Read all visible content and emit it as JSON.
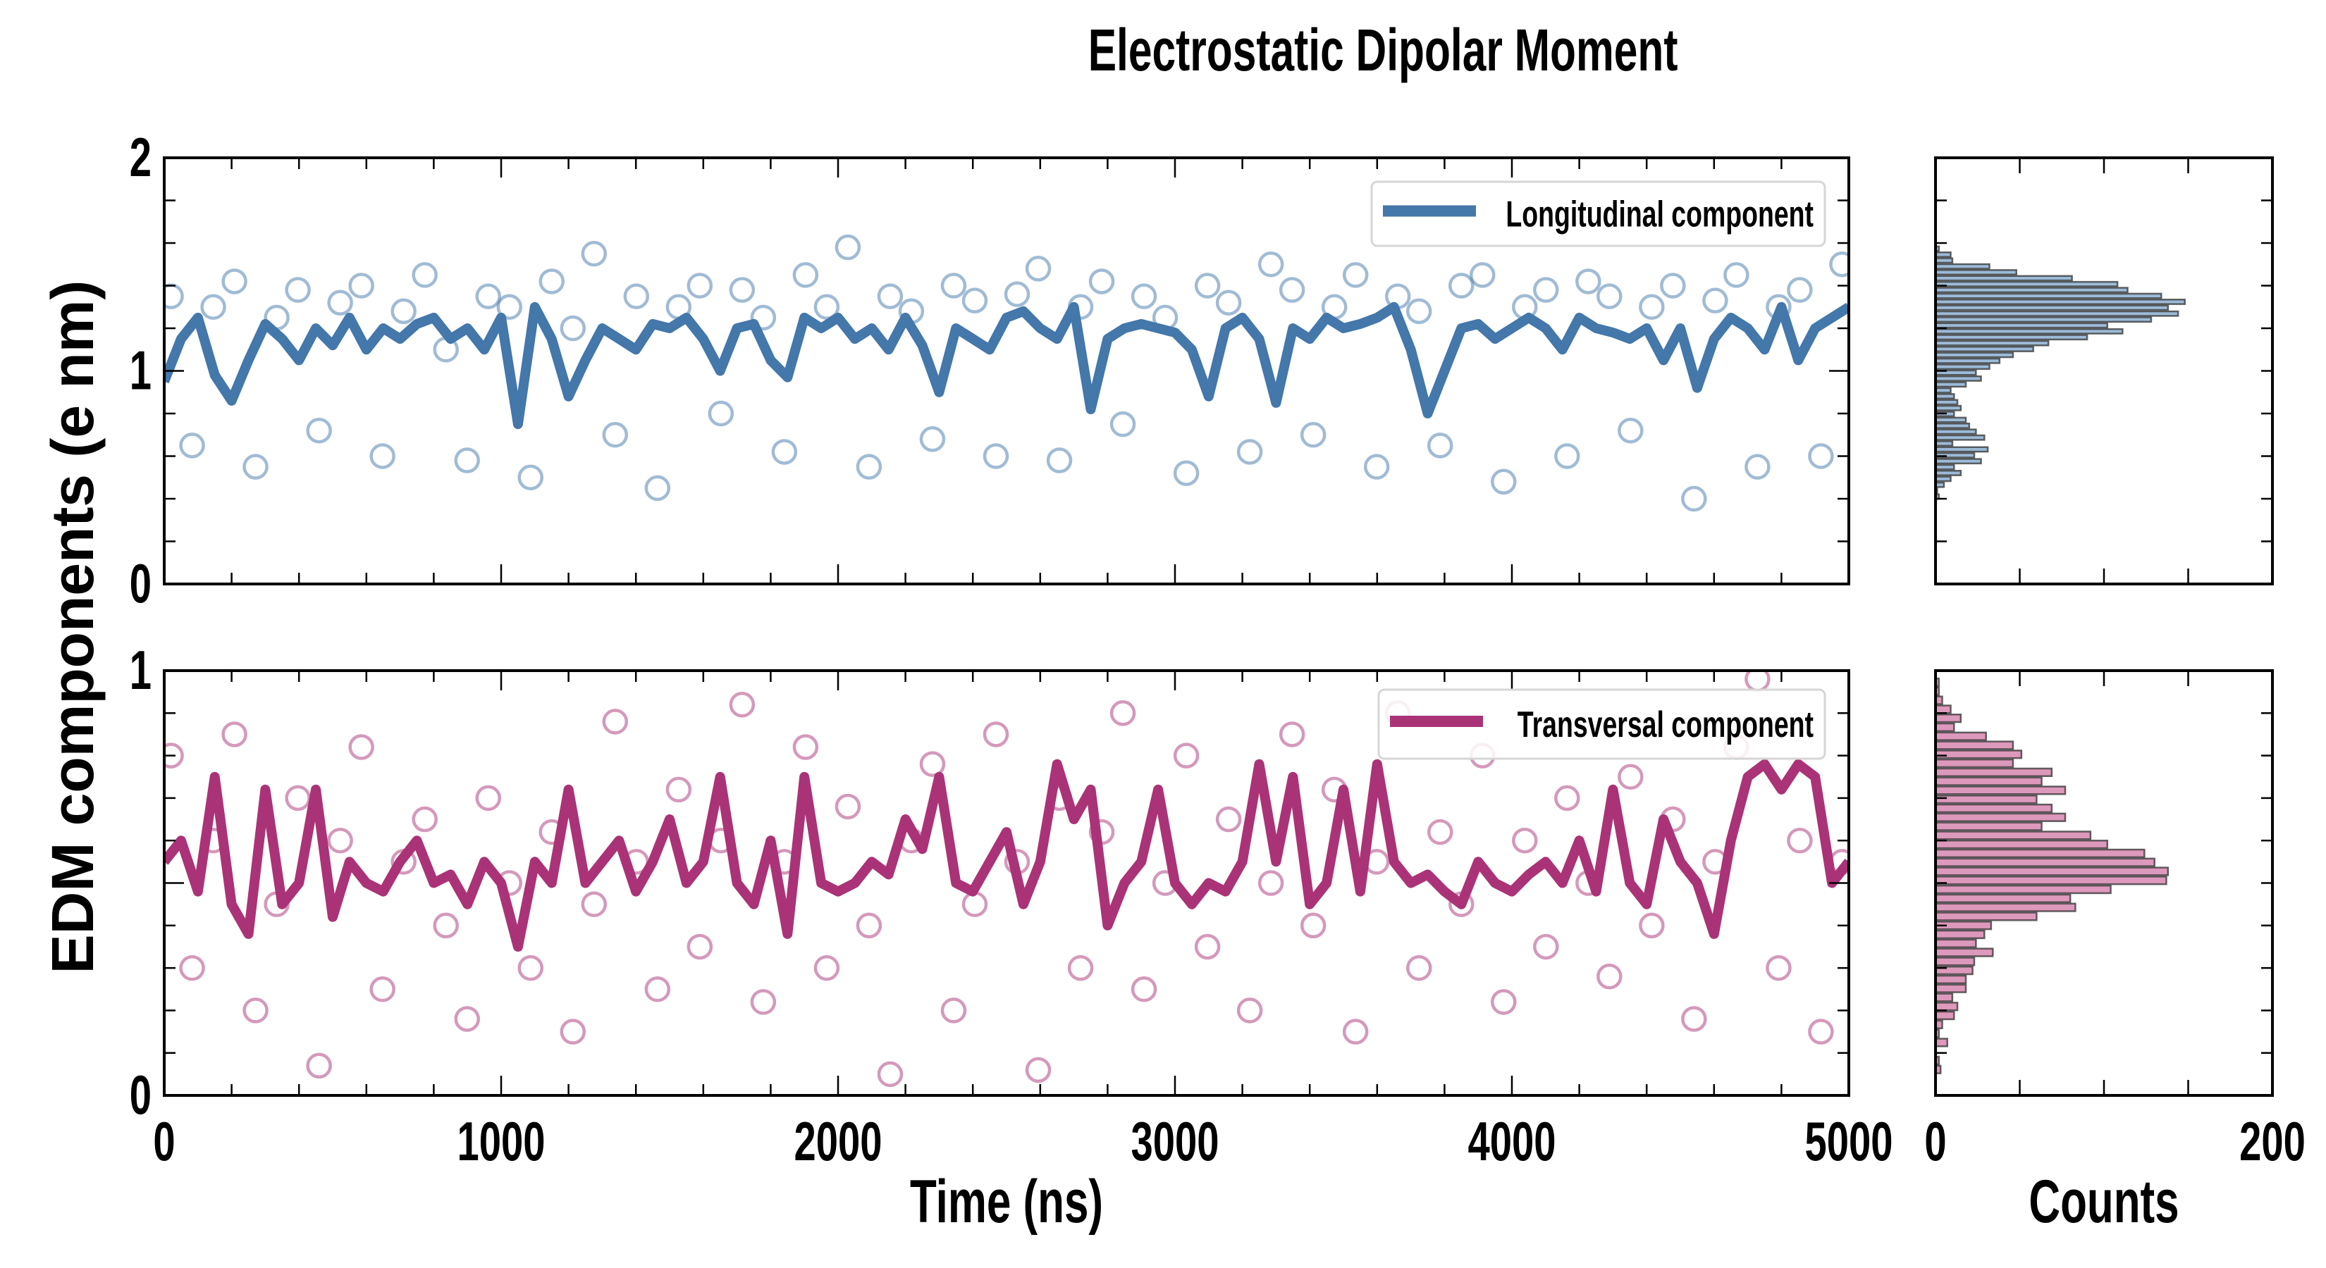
{
  "chart_data": [
    {
      "type": "line+scatter",
      "title": "Electrostatic Dipolar Moment",
      "ylabel": "EDM components (e nm)",
      "xlabel": "Time (ns)",
      "xlim": [
        0,
        5000
      ],
      "ylim": [
        0,
        2
      ],
      "xticks": [
        "0",
        "1000",
        "2000",
        "3000",
        "4000",
        "5000"
      ],
      "yticks": [
        "0",
        "1",
        "2"
      ],
      "legend": {
        "label": "Longitudinal component",
        "position": "top-right"
      },
      "color": "#4477aa",
      "line": {
        "x_start": 0,
        "x_end": 5000,
        "y": [
          0.95,
          1.15,
          1.25,
          0.98,
          0.86,
          1.05,
          1.22,
          1.15,
          1.05,
          1.2,
          1.12,
          1.25,
          1.1,
          1.2,
          1.15,
          1.22,
          1.25,
          1.15,
          1.2,
          1.1,
          1.25,
          0.75,
          1.3,
          1.15,
          0.88,
          1.05,
          1.2,
          1.15,
          1.1,
          1.22,
          1.2,
          1.25,
          1.15,
          1.0,
          1.2,
          1.22,
          1.05,
          0.97,
          1.25,
          1.2,
          1.25,
          1.15,
          1.2,
          1.1,
          1.25,
          1.12,
          0.9,
          1.2,
          1.15,
          1.1,
          1.25,
          1.28,
          1.2,
          1.15,
          1.3,
          0.82,
          1.15,
          1.2,
          1.22,
          1.2,
          1.18,
          1.1,
          0.88,
          1.2,
          1.25,
          1.15,
          0.85,
          1.2,
          1.15,
          1.25,
          1.2,
          1.22,
          1.25,
          1.3,
          1.1,
          0.8,
          1.0,
          1.2,
          1.22,
          1.15,
          1.2,
          1.25,
          1.2,
          1.1,
          1.25,
          1.2,
          1.18,
          1.15,
          1.2,
          1.05,
          1.2,
          0.92,
          1.15,
          1.25,
          1.2,
          1.1,
          1.3,
          1.05,
          1.2,
          1.25,
          1.3
        ]
      },
      "scatter": {
        "x_start": 20,
        "x_end": 4980,
        "y": [
          1.35,
          0.65,
          1.3,
          1.42,
          0.55,
          1.25,
          1.38,
          0.72,
          1.32,
          1.4,
          0.6,
          1.28,
          1.45,
          1.1,
          0.58,
          1.35,
          1.3,
          0.5,
          1.42,
          1.2,
          1.55,
          0.7,
          1.35,
          0.45,
          1.3,
          1.4,
          0.8,
          1.38,
          1.25,
          0.62,
          1.45,
          1.3,
          1.58,
          0.55,
          1.35,
          1.28,
          0.68,
          1.4,
          1.33,
          0.6,
          1.36,
          1.48,
          0.58,
          1.3,
          1.42,
          0.75,
          1.35,
          1.25,
          0.52,
          1.4,
          1.32,
          0.62,
          1.5,
          1.38,
          0.7,
          1.3,
          1.45,
          0.55,
          1.35,
          1.28,
          0.65,
          1.4,
          1.45,
          0.48,
          1.3,
          1.38,
          0.6,
          1.42,
          1.35,
          0.72,
          1.3,
          1.4,
          0.4,
          1.33,
          1.45,
          0.55,
          1.3,
          1.38,
          0.6,
          1.5
        ]
      }
    },
    {
      "type": "line+scatter",
      "xlim": [
        0,
        5000
      ],
      "ylim": [
        0,
        1
      ],
      "yticks": [
        "0",
        "1"
      ],
      "legend": {
        "label": "Transversal component",
        "position": "top-right"
      },
      "color": "#aa3377",
      "line": {
        "x_start": 0,
        "x_end": 5000,
        "y": [
          0.55,
          0.6,
          0.48,
          0.75,
          0.45,
          0.38,
          0.72,
          0.45,
          0.5,
          0.72,
          0.42,
          0.55,
          0.5,
          0.48,
          0.55,
          0.6,
          0.5,
          0.52,
          0.45,
          0.55,
          0.5,
          0.35,
          0.55,
          0.5,
          0.72,
          0.5,
          0.55,
          0.6,
          0.48,
          0.55,
          0.65,
          0.5,
          0.55,
          0.75,
          0.5,
          0.45,
          0.6,
          0.38,
          0.75,
          0.5,
          0.48,
          0.5,
          0.55,
          0.52,
          0.65,
          0.58,
          0.75,
          0.5,
          0.48,
          0.55,
          0.62,
          0.45,
          0.55,
          0.78,
          0.65,
          0.72,
          0.4,
          0.5,
          0.55,
          0.72,
          0.5,
          0.45,
          0.5,
          0.48,
          0.55,
          0.78,
          0.55,
          0.75,
          0.45,
          0.5,
          0.72,
          0.48,
          0.78,
          0.55,
          0.5,
          0.52,
          0.48,
          0.45,
          0.55,
          0.5,
          0.48,
          0.52,
          0.55,
          0.5,
          0.6,
          0.48,
          0.72,
          0.5,
          0.45,
          0.65,
          0.55,
          0.5,
          0.38,
          0.6,
          0.75,
          0.78,
          0.72,
          0.78,
          0.75,
          0.5,
          0.55
        ]
      },
      "scatter": {
        "x_start": 20,
        "x_end": 4980,
        "y": [
          0.8,
          0.3,
          0.6,
          0.85,
          0.2,
          0.45,
          0.7,
          0.07,
          0.6,
          0.82,
          0.25,
          0.55,
          0.65,
          0.4,
          0.18,
          0.7,
          0.5,
          0.3,
          0.62,
          0.15,
          0.45,
          0.88,
          0.55,
          0.25,
          0.72,
          0.35,
          0.6,
          0.92,
          0.22,
          0.55,
          0.82,
          0.3,
          0.68,
          0.4,
          0.05,
          0.6,
          0.78,
          0.2,
          0.45,
          0.85,
          0.55,
          0.06,
          0.7,
          0.3,
          0.62,
          0.9,
          0.25,
          0.5,
          0.8,
          0.35,
          0.65,
          0.2,
          0.5,
          0.85,
          0.4,
          0.72,
          0.15,
          0.55,
          0.9,
          0.3,
          0.62,
          0.45,
          0.8,
          0.22,
          0.6,
          0.35,
          0.7,
          0.5,
          0.28,
          0.75,
          0.4,
          0.65,
          0.18,
          0.55,
          0.82,
          0.98,
          0.3,
          0.6,
          0.15,
          0.55
        ]
      }
    },
    {
      "type": "bar-horizontal-histogram",
      "xlabel": "Counts",
      "xlim": [
        0,
        200
      ],
      "ylim": [
        0,
        2
      ],
      "color": "#4477aa",
      "bin_start": 0.41,
      "bin_width": 0.0277,
      "counts": [
        2,
        1,
        5,
        9,
        15,
        11,
        27,
        23,
        31,
        10,
        29,
        24,
        20,
        18,
        11,
        15,
        13,
        11,
        9,
        18,
        27,
        24,
        32,
        38,
        46,
        58,
        67,
        90,
        111,
        102,
        128,
        144,
        138,
        148,
        134,
        114,
        108,
        81,
        48,
        32,
        10,
        9,
        2
      ]
    },
    {
      "type": "bar-horizontal-histogram",
      "xlim": [
        0,
        200
      ],
      "xticks": [
        "0",
        "200"
      ],
      "ylim": [
        0,
        1
      ],
      "color": "#aa3377",
      "bin_start": 0.061,
      "bin_width": 0.0212,
      "counts": [
        3,
        2,
        0,
        7,
        2,
        4,
        11,
        13,
        10,
        18,
        18,
        22,
        23,
        34,
        24,
        29,
        33,
        60,
        83,
        80,
        104,
        137,
        138,
        130,
        124,
        102,
        92,
        63,
        77,
        69,
        60,
        77,
        63,
        69,
        46,
        51,
        46,
        30,
        11,
        15,
        9,
        4,
        2,
        2
      ]
    }
  ]
}
